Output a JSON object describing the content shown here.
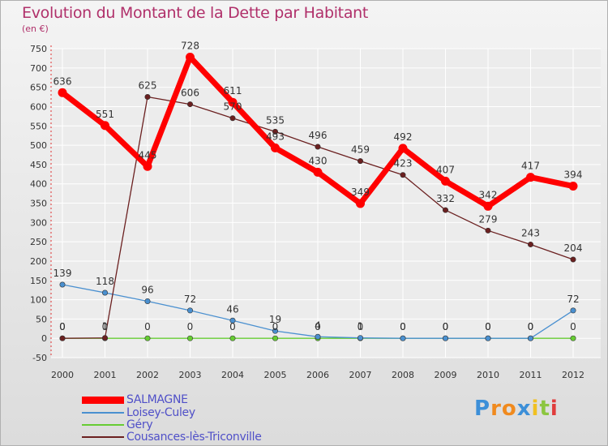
{
  "header": {
    "title": "Evolution du Montant de la Dette par Habitant",
    "unit": "(en €)"
  },
  "chart_data": {
    "type": "line",
    "title": "Evolution du Montant de la Dette par Habitant",
    "subtitle": "(en €)",
    "xlabel": "",
    "ylabel": "",
    "x": [
      "2000",
      "2001",
      "2002",
      "2003",
      "2004",
      "2005",
      "2006",
      "2007",
      "2008",
      "2009",
      "2010",
      "2011",
      "2012"
    ],
    "ylim": [
      -50,
      750
    ],
    "yticks": [
      -50,
      0,
      50,
      100,
      150,
      200,
      250,
      300,
      350,
      400,
      450,
      500,
      550,
      600,
      650,
      700,
      750
    ],
    "grid": true,
    "legend_position": "bottom",
    "series": [
      {
        "name": "SALMAGNE",
        "color": "#ff0000",
        "values": [
          636,
          551,
          445,
          728,
          611,
          493,
          430,
          349,
          492,
          407,
          342,
          417,
          394
        ]
      },
      {
        "name": "Loisey-Culey",
        "color": "#4a90d0",
        "values": [
          139,
          118,
          96,
          72,
          46,
          19,
          4,
          1,
          0,
          0,
          0,
          0,
          72
        ]
      },
      {
        "name": "Géry",
        "color": "#66cc33",
        "values": [
          0,
          0,
          0,
          0,
          0,
          0,
          0,
          0,
          0,
          0,
          0,
          0,
          0
        ]
      },
      {
        "name": "Cousances-lès-Triconville",
        "color": "#6b2020",
        "values": [
          0,
          1,
          625,
          606,
          570,
          535,
          496,
          459,
          423,
          332,
          279,
          243,
          204
        ]
      }
    ]
  },
  "logo": {
    "letters": [
      "P",
      "r",
      "o",
      "x",
      "i",
      "t",
      "i"
    ],
    "colors": [
      "#3c8fd8",
      "#f08a1e",
      "#f08a1e",
      "#3c8fd8",
      "#f0c020",
      "#8cc63f",
      "#e03c3c"
    ]
  }
}
